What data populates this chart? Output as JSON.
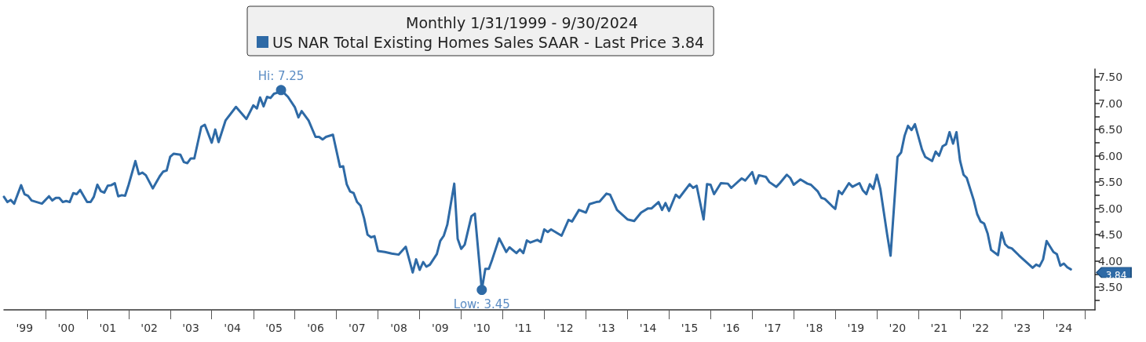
{
  "chart_data": {
    "type": "line",
    "title": "Monthly 1/31/1999 - 9/30/2024",
    "legend": "top",
    "grid": false,
    "marker": "none",
    "line_style": "solid",
    "xlim": [
      "1999-01",
      "2025-04"
    ],
    "xticks": [
      {
        "value": "1999-07",
        "label": "'99"
      },
      {
        "value": "2000-07",
        "label": "'00"
      },
      {
        "value": "2001-07",
        "label": "'01"
      },
      {
        "value": "2002-07",
        "label": "'02"
      },
      {
        "value": "2003-07",
        "label": "'03"
      },
      {
        "value": "2004-07",
        "label": "'04"
      },
      {
        "value": "2005-07",
        "label": "'05"
      },
      {
        "value": "2006-07",
        "label": "'06"
      },
      {
        "value": "2007-07",
        "label": "'07"
      },
      {
        "value": "2008-07",
        "label": "'08"
      },
      {
        "value": "2009-07",
        "label": "'09"
      },
      {
        "value": "2010-07",
        "label": "'10"
      },
      {
        "value": "2011-07",
        "label": "'11"
      },
      {
        "value": "2012-07",
        "label": "'12"
      },
      {
        "value": "2013-07",
        "label": "'13"
      },
      {
        "value": "2014-07",
        "label": "'14"
      },
      {
        "value": "2015-07",
        "label": "'15"
      },
      {
        "value": "2016-07",
        "label": "'16"
      },
      {
        "value": "2017-07",
        "label": "'17"
      },
      {
        "value": "2018-07",
        "label": "'18"
      },
      {
        "value": "2019-07",
        "label": "'19"
      },
      {
        "value": "2020-07",
        "label": "'20"
      },
      {
        "value": "2021-07",
        "label": "'21"
      },
      {
        "value": "2022-07",
        "label": "'22"
      },
      {
        "value": "2023-07",
        "label": "'23"
      },
      {
        "value": "2024-07",
        "label": "'24"
      },
      {
        "value": "2000-01",
        "label": null
      },
      {
        "value": "2001-01",
        "label": null
      },
      {
        "value": "2002-01",
        "label": null
      },
      {
        "value": "2003-01",
        "label": null
      },
      {
        "value": "2004-01",
        "label": null
      },
      {
        "value": "2005-01",
        "label": null
      },
      {
        "value": "2006-01",
        "label": null
      },
      {
        "value": "2007-01",
        "label": null
      },
      {
        "value": "2008-01",
        "label": null
      },
      {
        "value": "2009-01",
        "label": null
      },
      {
        "value": "2010-01",
        "label": null
      },
      {
        "value": "2011-01",
        "label": null
      },
      {
        "value": "2012-01",
        "label": null
      },
      {
        "value": "2013-01",
        "label": null
      },
      {
        "value": "2014-01",
        "label": null
      },
      {
        "value": "2015-01",
        "label": null
      },
      {
        "value": "2016-01",
        "label": null
      },
      {
        "value": "2017-01",
        "label": null
      },
      {
        "value": "2018-01",
        "label": null
      },
      {
        "value": "2019-01",
        "label": null
      },
      {
        "value": "2020-01",
        "label": null
      },
      {
        "value": "2021-01",
        "label": null
      },
      {
        "value": "2022-01",
        "label": null
      },
      {
        "value": "2023-01",
        "label": null
      },
      {
        "value": "2024-01",
        "label": null
      },
      {
        "value": "2025-01",
        "label": null
      }
    ],
    "ylim": [
      3.07,
      7.65
    ],
    "yticks": [
      {
        "value": 3.25,
        "label": null
      },
      {
        "value": 3.5,
        "label": "3.50"
      },
      {
        "value": 3.75,
        "label": null
      },
      {
        "value": 4,
        "label": "4.00"
      },
      {
        "value": 4.25,
        "label": null
      },
      {
        "value": 4.5,
        "label": "4.50"
      },
      {
        "value": 4.75,
        "label": null
      },
      {
        "value": 5,
        "label": "5.00"
      },
      {
        "value": 5.25,
        "label": null
      },
      {
        "value": 5.5,
        "label": "5.50"
      },
      {
        "value": 5.75,
        "label": null
      },
      {
        "value": 6,
        "label": "6.00"
      },
      {
        "value": 6.25,
        "label": null
      },
      {
        "value": 6.5,
        "label": "6.50"
      },
      {
        "value": 6.75,
        "label": null
      },
      {
        "value": 7,
        "label": "7.00"
      },
      {
        "value": 7.25,
        "label": null
      },
      {
        "value": 7.5,
        "label": "7.50"
      }
    ],
    "series": [
      {
        "name": "US NAR Total Existing Homes Sales SAAR - Last Price 3.84",
        "color": "#2e6aa6",
        "x": [
          "1999-01",
          "1999-02",
          "1999-03",
          "1999-04",
          "1999-06",
          "1999-07",
          "1999-08",
          "1999-09",
          "1999-12",
          "2000-02",
          "2000-03",
          "2000-04",
          "2000-05",
          "2000-06",
          "2000-07",
          "2000-08",
          "2000-09",
          "2000-10",
          "2000-11",
          "2001-01",
          "2001-02",
          "2001-03",
          "2001-04",
          "2001-05",
          "2001-06",
          "2001-07",
          "2001-08",
          "2001-09",
          "2001-10",
          "2001-11",
          "2001-12",
          "2002-01",
          "2002-03",
          "2002-04",
          "2002-05",
          "2002-06",
          "2002-08",
          "2002-10",
          "2002-11",
          "2002-12",
          "2003-01",
          "2003-02",
          "2003-04",
          "2003-05",
          "2003-06",
          "2003-07",
          "2003-08",
          "2003-10",
          "2003-11",
          "2004-01",
          "2004-02",
          "2004-03",
          "2004-05",
          "2004-08",
          "2004-11",
          "2005-01",
          "2005-02",
          "2005-03",
          "2005-04",
          "2005-05",
          "2005-06",
          "2005-07",
          "2005-08",
          "2005-09",
          "2005-11",
          "2006-01",
          "2006-02",
          "2006-03",
          "2006-05",
          "2006-07",
          "2006-08",
          "2006-09",
          "2006-10",
          "2006-12",
          "2007-02",
          "2007-03",
          "2007-04",
          "2007-05",
          "2007-06",
          "2007-07",
          "2007-08",
          "2007-09",
          "2007-10",
          "2007-11",
          "2007-12",
          "2008-01",
          "2008-03",
          "2008-05",
          "2008-07",
          "2008-09",
          "2008-11",
          "2008-12",
          "2009-01",
          "2009-02",
          "2009-03",
          "2009-04",
          "2009-06",
          "2009-07",
          "2009-08",
          "2009-09",
          "2009-11",
          "2009-12",
          "2010-01",
          "2010-02",
          "2010-04",
          "2010-05",
          "2010-07",
          "2010-08",
          "2010-09",
          "2010-10",
          "2010-12",
          "2011-02",
          "2011-03",
          "2011-05",
          "2011-06",
          "2011-07",
          "2011-08",
          "2011-09",
          "2011-11",
          "2011-12",
          "2012-01",
          "2012-02",
          "2012-03",
          "2012-06",
          "2012-08",
          "2012-09",
          "2012-11",
          "2013-01",
          "2013-02",
          "2013-04",
          "2013-05",
          "2013-07",
          "2013-08",
          "2013-10",
          "2014-01",
          "2014-03",
          "2014-05",
          "2014-07",
          "2014-08",
          "2014-10",
          "2014-11",
          "2014-12",
          "2015-01",
          "2015-03",
          "2015-04",
          "2015-07",
          "2015-08",
          "2015-09",
          "2015-11",
          "2015-12",
          "2016-01",
          "2016-02",
          "2016-04",
          "2016-06",
          "2016-07",
          "2016-10",
          "2016-11",
          "2017-01",
          "2017-02",
          "2017-03",
          "2017-05",
          "2017-06",
          "2017-08",
          "2017-09",
          "2017-11",
          "2017-12",
          "2018-01",
          "2018-03",
          "2018-05",
          "2018-06",
          "2018-08",
          "2018-09",
          "2018-10",
          "2018-12",
          "2019-01",
          "2019-02",
          "2019-03",
          "2019-05",
          "2019-06",
          "2019-08",
          "2019-09",
          "2019-10",
          "2019-11",
          "2019-12",
          "2020-01",
          "2020-02",
          "2020-04",
          "2020-05",
          "2020-07",
          "2020-08",
          "2020-09",
          "2020-10",
          "2020-11",
          "2020-12",
          "2021-02",
          "2021-03",
          "2021-05",
          "2021-06",
          "2021-07",
          "2021-08",
          "2021-09",
          "2021-10",
          "2021-11",
          "2021-12",
          "2022-01",
          "2022-02",
          "2022-03",
          "2022-05",
          "2022-06",
          "2022-07",
          "2022-08",
          "2022-09",
          "2022-10",
          "2022-12",
          "2023-01",
          "2023-02",
          "2023-03",
          "2023-04",
          "2023-06",
          "2023-07",
          "2023-08",
          "2023-10",
          "2023-11",
          "2023-12",
          "2024-01",
          "2024-02",
          "2024-04",
          "2024-05",
          "2024-06",
          "2024-07",
          "2024-08",
          "2024-09"
        ],
        "values": [
          5.22,
          5.12,
          5.16,
          5.09,
          5.44,
          5.27,
          5.24,
          5.15,
          5.09,
          5.23,
          5.15,
          5.2,
          5.2,
          5.12,
          5.14,
          5.12,
          5.29,
          5.27,
          5.35,
          5.12,
          5.12,
          5.22,
          5.45,
          5.33,
          5.3,
          5.43,
          5.44,
          5.48,
          5.23,
          5.25,
          5.24,
          5.45,
          5.9,
          5.65,
          5.68,
          5.63,
          5.38,
          5.61,
          5.7,
          5.72,
          5.98,
          6.04,
          6.02,
          5.88,
          5.86,
          5.95,
          5.95,
          6.55,
          6.59,
          6.25,
          6.5,
          6.26,
          6.67,
          6.93,
          6.7,
          6.96,
          6.9,
          7.11,
          6.94,
          7.12,
          7.1,
          7.18,
          7.2,
          7.25,
          7.12,
          6.92,
          6.73,
          6.85,
          6.67,
          6.36,
          6.36,
          6.31,
          6.36,
          6.4,
          5.79,
          5.8,
          5.46,
          5.32,
          5.29,
          5.12,
          5.05,
          4.81,
          4.5,
          4.45,
          4.47,
          4.19,
          4.17,
          4.14,
          4.12,
          4.27,
          3.78,
          4.03,
          3.83,
          3.98,
          3.89,
          3.93,
          4.13,
          4.38,
          4.48,
          4.69,
          5.47,
          4.42,
          4.23,
          4.31,
          4.85,
          4.9,
          3.45,
          3.85,
          3.85,
          4.03,
          4.43,
          4.17,
          4.26,
          4.15,
          4.22,
          4.15,
          4.39,
          4.35,
          4.4,
          4.36,
          4.6,
          4.55,
          4.6,
          4.48,
          4.78,
          4.75,
          4.97,
          4.92,
          5.08,
          5.12,
          5.13,
          5.28,
          5.26,
          4.97,
          4.79,
          4.76,
          4.92,
          5.0,
          5.0,
          5.12,
          4.97,
          5.1,
          4.95,
          5.26,
          5.2,
          5.46,
          5.39,
          5.43,
          4.79,
          5.46,
          5.45,
          5.27,
          5.48,
          5.47,
          5.39,
          5.57,
          5.53,
          5.69,
          5.47,
          5.63,
          5.6,
          5.5,
          5.41,
          5.48,
          5.64,
          5.58,
          5.45,
          5.55,
          5.47,
          5.45,
          5.32,
          5.2,
          5.18,
          5.05,
          4.99,
          5.33,
          5.27,
          5.48,
          5.41,
          5.48,
          5.34,
          5.27,
          5.46,
          5.37,
          5.64,
          5.37,
          4.5,
          4.1,
          5.98,
          6.06,
          6.38,
          6.57,
          6.49,
          6.6,
          6.12,
          5.98,
          5.9,
          6.08,
          6.0,
          6.18,
          6.22,
          6.45,
          6.23,
          6.45,
          5.91,
          5.64,
          5.58,
          5.16,
          4.89,
          4.75,
          4.71,
          4.52,
          4.21,
          4.11,
          4.54,
          4.32,
          4.26,
          4.24,
          4.11,
          4.05,
          3.99,
          3.87,
          3.93,
          3.9,
          4.03,
          4.38,
          4.17,
          4.13,
          3.91,
          3.95,
          3.88,
          3.84
        ]
      }
    ],
    "annotations": [
      {
        "text": "Hi: 7.25",
        "x": "2005-09",
        "y": 7.25
      },
      {
        "text": "Low: 3.45",
        "x": "2010-07",
        "y": 3.45
      },
      "3.84"
    ]
  }
}
